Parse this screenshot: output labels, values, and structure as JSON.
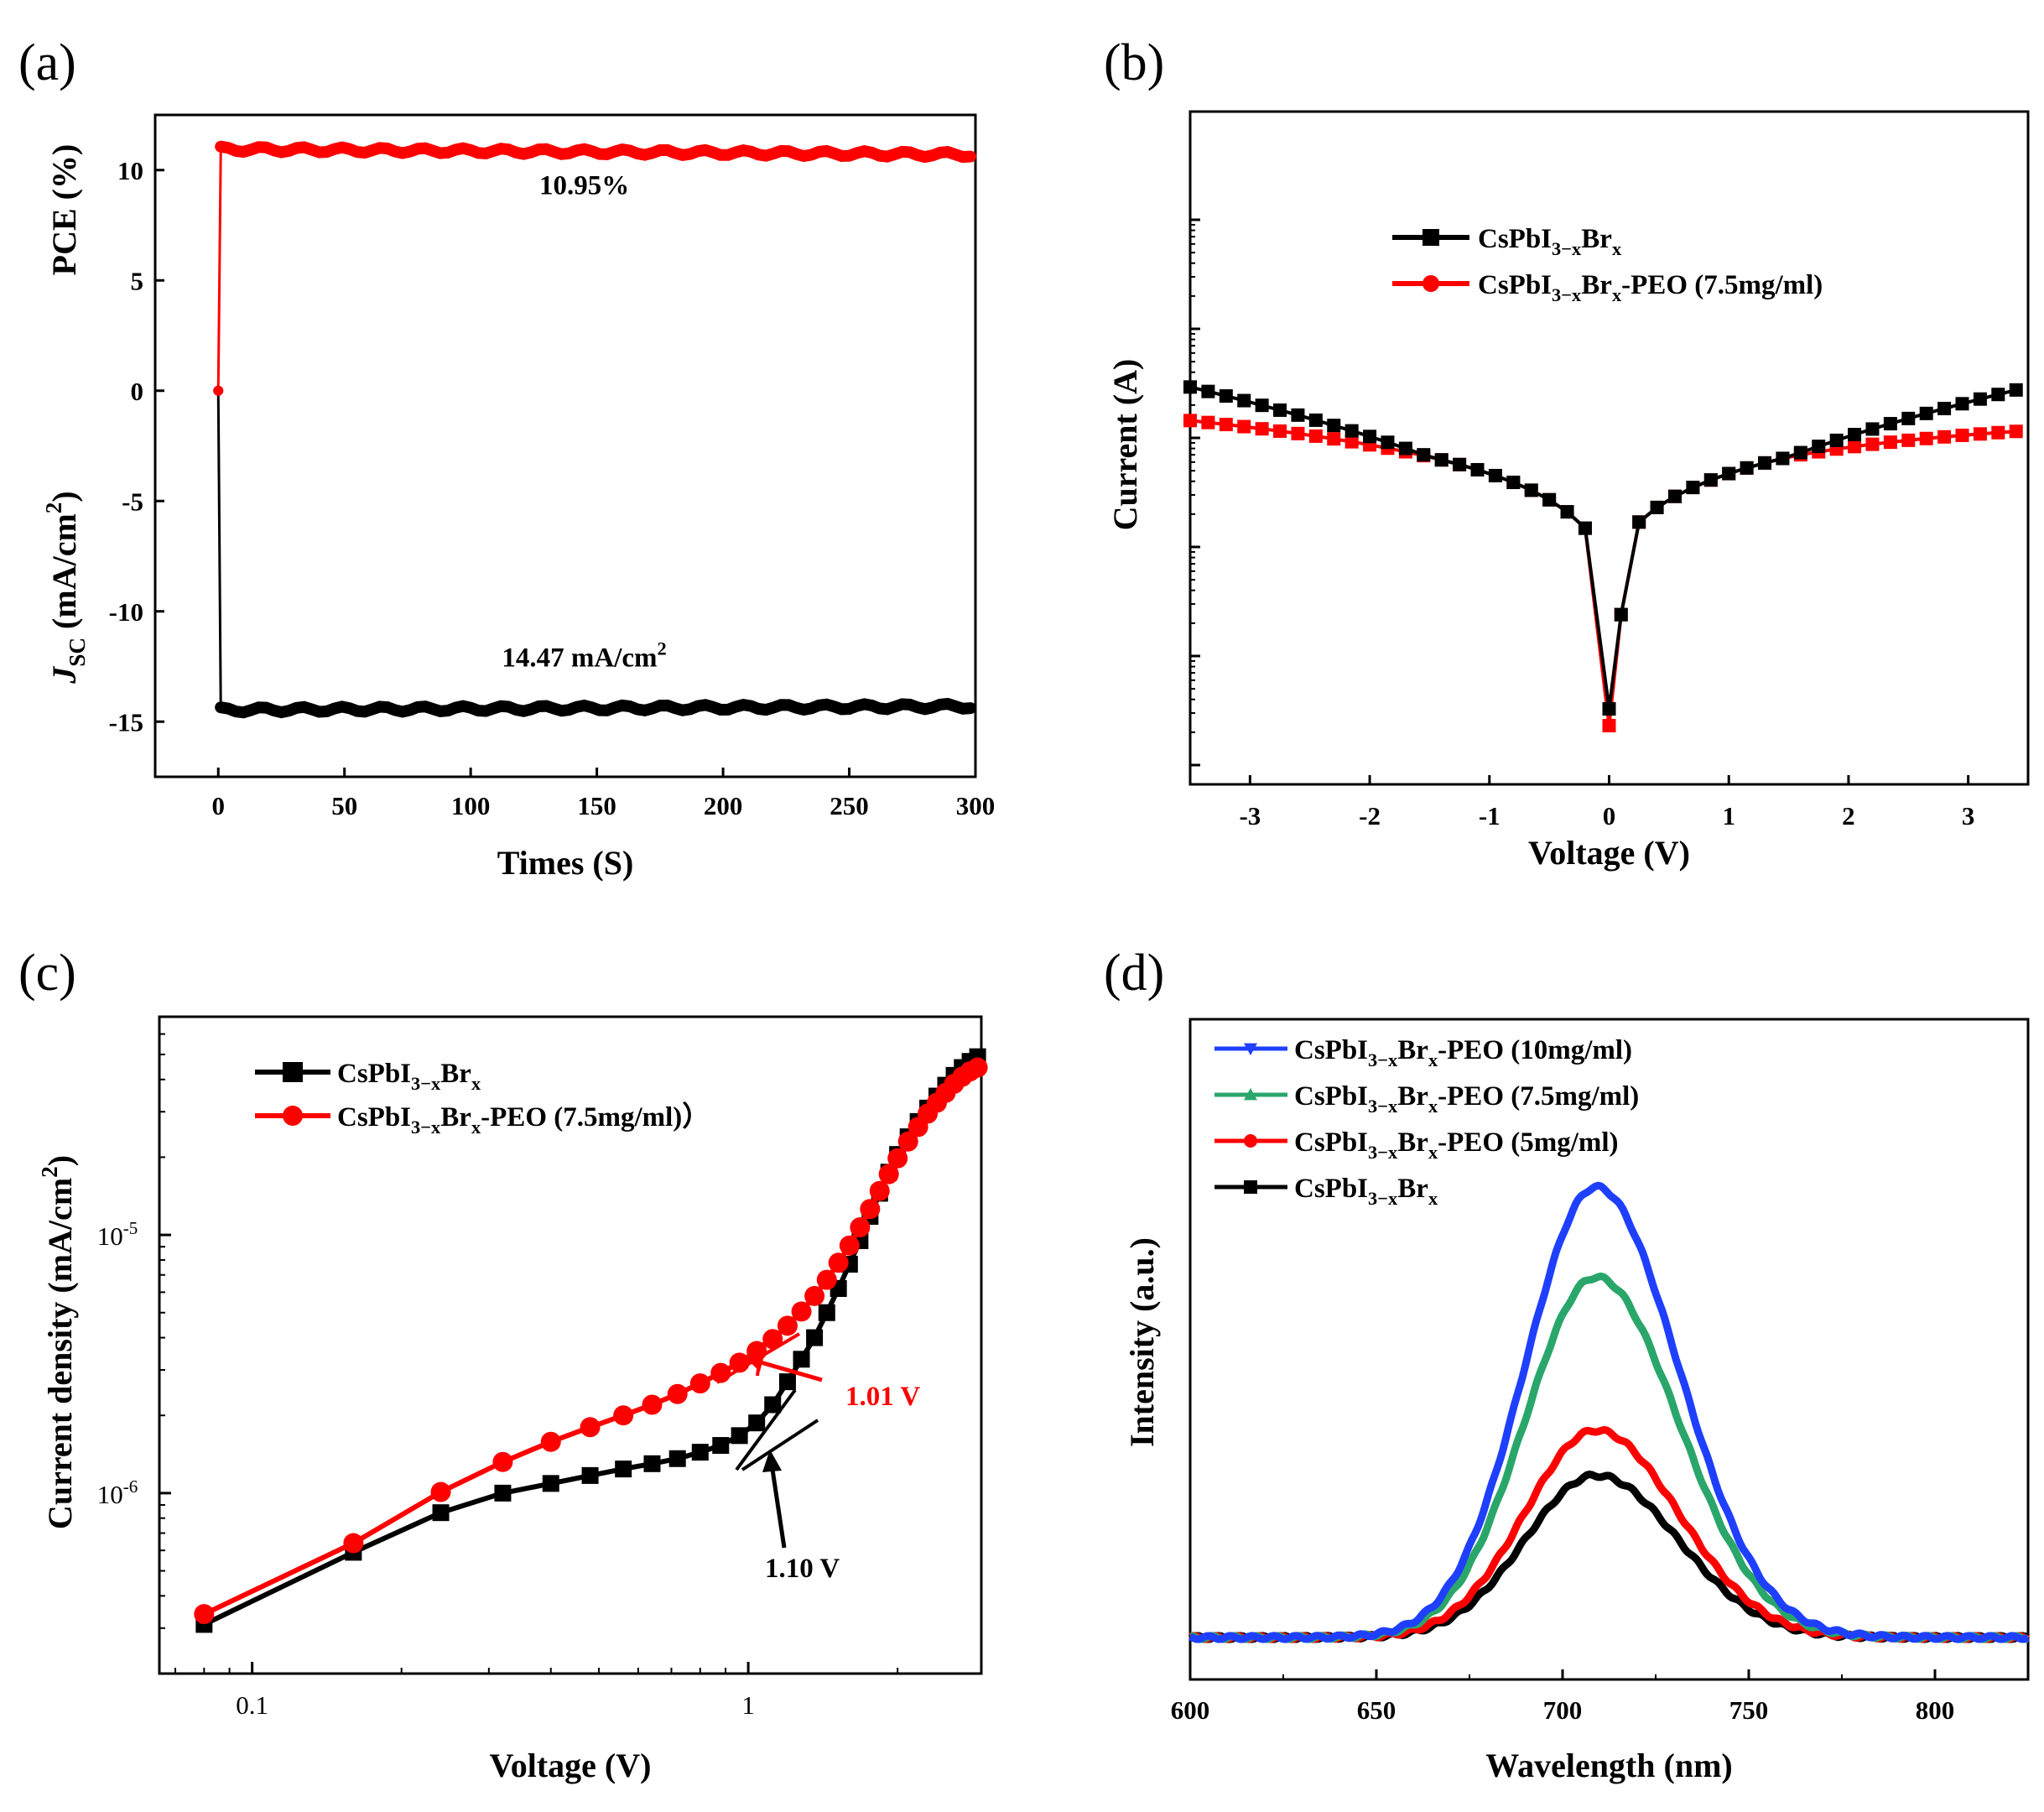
{
  "chart_data": [
    {
      "panel": "(a)",
      "type": "line",
      "title": "",
      "xlabel": "Times (S)",
      "ylabel_top": "PCE (%)",
      "ylabel_bottom": "J_SC (mA/cm^2)",
      "ylabel_bottom_main": "J",
      "ylabel_bottom_sub": "SC",
      "ylabel_bottom_rest": " (mA/cm",
      "ylabel_bottom_sup": "2",
      "ylabel_bottom_close": ")",
      "xlim": [
        -25,
        300
      ],
      "ylim": [
        -17.5,
        12.5
      ],
      "xticks": [
        0,
        50,
        100,
        150,
        200,
        250,
        300
      ],
      "yticks": [
        10,
        5,
        0,
        -5,
        -10,
        -15
      ],
      "series": [
        {
          "name": "PCE",
          "color": "#ff0000",
          "marker": "circle",
          "x": [
            0,
            1,
            300
          ],
          "y": [
            0,
            10.95,
            10.7
          ]
        },
        {
          "name": "Jsc",
          "color": "#000000",
          "marker": "circle",
          "x": [
            0,
            1,
            300
          ],
          "y": [
            0,
            -14.47,
            -14.3
          ]
        }
      ],
      "annotations": [
        {
          "text": "10.95%",
          "x": 145,
          "y": 8.9
        },
        {
          "text_main": "14.47 mA/cm",
          "text_sup": "2",
          "x": 145,
          "y": -12.5
        }
      ]
    },
    {
      "panel": "(b)",
      "type": "scatter",
      "xlabel": "Voltage (V)",
      "ylabel": "Current (A)",
      "xlim": [
        -3.5,
        3.5
      ],
      "xticks": [
        -3,
        -2,
        -1,
        0,
        1,
        2,
        3
      ],
      "yscale": "log",
      "series": [
        {
          "name": "CsPbI3-xBrx",
          "label_main": "CsPbI",
          "label_sub1": "3−x",
          "label_mid": "Br",
          "label_sub2": "x",
          "label_tail": "",
          "color": "#000000",
          "marker": "square"
        },
        {
          "name": "CsPbI3-xBrx-PEO (7.5mg/ml)",
          "label_main": "CsPbI",
          "label_sub1": "3−x",
          "label_mid": "Br",
          "label_sub2": "x",
          "label_tail": "-PEO (7.5mg/ml)",
          "color": "#ff0000",
          "marker": "circle"
        }
      ]
    },
    {
      "panel": "(c)",
      "type": "line",
      "xlabel": "Voltage (V)",
      "ylabel": "Current density (mA/cm^2)",
      "ylabel_main": "Current density (mA/cm",
      "ylabel_sup": "2",
      "ylabel_close": ")",
      "xscale": "log",
      "yscale": "log",
      "xlim": [
        0.065,
        3.0
      ],
      "ylim": [
        2e-07,
        7e-05
      ],
      "xtick_labels": [
        "0.1",
        "1"
      ],
      "ytick_labels": [
        {
          "base": "10",
          "exp": "-5"
        },
        {
          "base": "10",
          "exp": "-6"
        }
      ],
      "series": [
        {
          "name": "CsPbI3-xBrx",
          "label_main": "CsPbI",
          "label_sub1": "3−x",
          "label_mid": "Br",
          "label_sub2": "x",
          "label_tail": "",
          "color": "#000000",
          "marker": "square",
          "x": [
            0.08,
            0.16,
            0.24,
            0.32,
            0.4,
            0.48,
            0.56,
            0.64,
            0.72,
            0.8,
            0.88,
            0.96,
            1.04,
            1.12,
            1.2,
            1.28,
            1.36,
            1.44,
            1.52,
            1.6,
            1.68,
            1.76,
            1.84,
            1.92,
            2.0,
            2.1,
            2.2,
            2.3,
            2.4,
            2.5,
            2.6,
            2.7,
            2.8,
            2.9
          ],
          "y": [
            3.1e-07,
            5.9e-07,
            8.4e-07,
            1e-06,
            1.09e-06,
            1.17e-06,
            1.24e-06,
            1.3e-06,
            1.36e-06,
            1.44e-06,
            1.53e-06,
            1.67e-06,
            1.87e-06,
            2.2e-06,
            2.7e-06,
            3.3e-06,
            4e-06,
            5e-06,
            6.2e-06,
            7.7e-06,
            9.5e-06,
            1.18e-05,
            1.45e-05,
            1.75e-05,
            2.05e-05,
            2.4e-05,
            2.75e-05,
            3.1e-05,
            3.45e-05,
            3.8e-05,
            4.15e-05,
            4.45e-05,
            4.7e-05,
            4.9e-05
          ]
        },
        {
          "name": "CsPbI3-xBrx-PEO (7.5mg/ml)",
          "label_main": "CsPbI",
          "label_sub1": "3−x",
          "label_mid": "Br",
          "label_sub2": "x",
          "label_tail": "-PEO (7.5mg/ml)）",
          "color": "#ff0000",
          "marker": "circle",
          "x": [
            0.08,
            0.16,
            0.24,
            0.32,
            0.4,
            0.48,
            0.56,
            0.64,
            0.72,
            0.8,
            0.88,
            0.96,
            1.04,
            1.12,
            1.2,
            1.28,
            1.36,
            1.44,
            1.52,
            1.6,
            1.68,
            1.76,
            1.84,
            1.92,
            2.0,
            2.1,
            2.2,
            2.3,
            2.4,
            2.5,
            2.6,
            2.7,
            2.8,
            2.9
          ],
          "y": [
            3.4e-07,
            6.4e-07,
            1.01e-06,
            1.32e-06,
            1.58e-06,
            1.8e-06,
            2e-06,
            2.2e-06,
            2.42e-06,
            2.66e-06,
            2.92e-06,
            3.2e-06,
            3.55e-06,
            3.95e-06,
            4.45e-06,
            5.05e-06,
            5.8e-06,
            6.7e-06,
            7.8e-06,
            9.1e-06,
            1.07e-05,
            1.26e-05,
            1.48e-05,
            1.72e-05,
            1.98e-05,
            2.3e-05,
            2.62e-05,
            2.95e-05,
            3.25e-05,
            3.55e-05,
            3.85e-05,
            4.1e-05,
            4.3e-05,
            4.45e-05
          ]
        }
      ],
      "annotations": [
        {
          "text": "1.01 V",
          "color": "#ff0000",
          "x": 1.01,
          "y": 3.2e-06
        },
        {
          "text": "1.10 V",
          "color": "#000000",
          "x": 1.1,
          "y": 1.55e-06
        }
      ]
    },
    {
      "panel": "(d)",
      "type": "line",
      "xlabel": "Wavelength (nm)",
      "ylabel": "Intensity (a.u.)",
      "xlim": [
        600,
        825
      ],
      "xticks": [
        600,
        650,
        700,
        750,
        800
      ],
      "peak_wavelength": 709,
      "series": [
        {
          "name": "CsPbI3-xBrx-PEO (10mg/ml)",
          "label_main": "CsPbI",
          "label_sub1": "3−x",
          "label_mid": "Br",
          "label_sub2": "x",
          "label_tail": "-PEO (10mg/ml)",
          "color": "#1f3fff",
          "marker": "triangle-down",
          "peak": 1.0
        },
        {
          "name": "CsPbI3-xBrx-PEO (7.5mg/ml)",
          "label_main": "CsPbI",
          "label_sub1": "3−x",
          "label_mid": "Br",
          "label_sub2": "x",
          "label_tail": "-PEO (7.5mg/ml)",
          "color": "#2aa66a",
          "marker": "triangle-up",
          "peak": 0.8
        },
        {
          "name": "CsPbI3-xBrx-PEO (5mg/ml)",
          "label_main": "CsPbI",
          "label_sub1": "3−x",
          "label_mid": "Br",
          "label_sub2": "x",
          "label_tail": "-PEO (5mg/ml)",
          "color": "#ff0000",
          "marker": "circle",
          "peak": 0.46
        },
        {
          "name": "CsPbI3-xBrx",
          "label_main": "CsPbI",
          "label_sub1": "3−x",
          "label_mid": "Br",
          "label_sub2": "x",
          "label_tail": "",
          "color": "#000000",
          "marker": "square",
          "peak": 0.36
        }
      ]
    }
  ]
}
